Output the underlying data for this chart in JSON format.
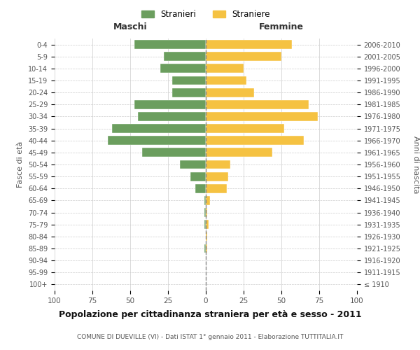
{
  "age_groups": [
    "100+",
    "95-99",
    "90-94",
    "85-89",
    "80-84",
    "75-79",
    "70-74",
    "65-69",
    "60-64",
    "55-59",
    "50-54",
    "45-49",
    "40-44",
    "35-39",
    "30-34",
    "25-29",
    "20-24",
    "15-19",
    "10-14",
    "5-9",
    "0-4"
  ],
  "birth_years": [
    "≤ 1910",
    "1911-1915",
    "1916-1920",
    "1921-1925",
    "1926-1930",
    "1931-1935",
    "1936-1940",
    "1941-1945",
    "1946-1950",
    "1951-1955",
    "1956-1960",
    "1961-1965",
    "1966-1970",
    "1971-1975",
    "1976-1980",
    "1981-1985",
    "1986-1990",
    "1991-1995",
    "1996-2000",
    "2001-2005",
    "2006-2010"
  ],
  "maschi": [
    0,
    0,
    0,
    1,
    0,
    1,
    1,
    1,
    7,
    10,
    17,
    42,
    65,
    62,
    45,
    47,
    22,
    22,
    30,
    28,
    47
  ],
  "femmine": [
    0,
    0,
    0,
    1,
    1,
    2,
    1,
    3,
    14,
    15,
    16,
    44,
    65,
    52,
    74,
    68,
    32,
    27,
    25,
    50,
    57
  ],
  "maschi_color": "#6b9e5e",
  "femmine_color": "#f5c242",
  "bg_color": "#ffffff",
  "grid_color": "#cccccc",
  "title": "Popolazione per cittadinanza straniera per età e sesso - 2011",
  "subtitle": "COMUNE DI DUEVILLE (VI) - Dati ISTAT 1° gennaio 2011 - Elaborazione TUTTITALIA.IT",
  "xlabel_left": "Maschi",
  "xlabel_right": "Femmine",
  "ylabel_left": "Fasce di età",
  "ylabel_right": "Anni di nascita",
  "legend_maschi": "Stranieri",
  "legend_femmine": "Straniere",
  "xlim": 100
}
